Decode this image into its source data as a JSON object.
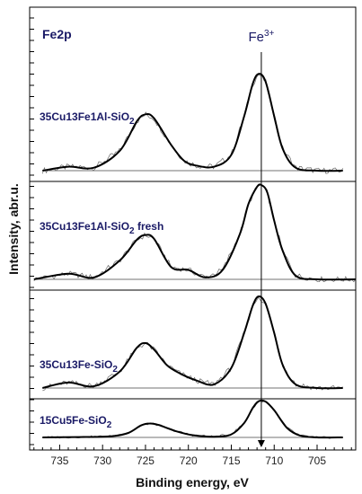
{
  "chart_data": {
    "type": "line",
    "title": "Fe2p",
    "xlabel": "Binding energy, eV",
    "ylabel": "Intensity, abr.u.",
    "x_reversed": true,
    "xlim": [
      738.5,
      700.5
    ],
    "xticks": [
      735,
      730,
      725,
      720,
      715,
      710,
      705
    ],
    "annotation": {
      "text": "Fe",
      "superscript": "3+",
      "x": 711.5
    },
    "grid": false,
    "series": [
      {
        "name": "35Cu13Fe1Al-SiO2",
        "label_main": "35Cu13Fe1Al-SiO",
        "label_sub": "2",
        "label_suffix": "",
        "x": [
          737.0,
          734.0,
          731.0,
          728.0,
          726.0,
          725.0,
          724.0,
          722.0,
          720.5,
          719.0,
          717.0,
          715.0,
          713.5,
          712.5,
          711.8,
          711.0,
          710.0,
          709.0,
          707.5,
          705.0,
          702.0
        ],
        "intensity": [
          0.0,
          0.04,
          0.03,
          0.2,
          0.5,
          0.57,
          0.53,
          0.26,
          0.1,
          0.05,
          0.04,
          0.16,
          0.55,
          0.88,
          0.98,
          0.9,
          0.55,
          0.22,
          0.03,
          0.0,
          0.0
        ]
      },
      {
        "name": "35Cu13Fe1Al-SiO2 fresh",
        "label_main": "35Cu13Fe1Al-SiO",
        "label_sub": "2",
        "label_suffix": " fresh",
        "x": [
          738.0,
          734.0,
          731.0,
          728.0,
          726.0,
          725.0,
          724.0,
          722.0,
          720.0,
          718.0,
          716.0,
          714.0,
          713.0,
          712.0,
          711.5,
          710.8,
          710.0,
          709.0,
          707.5,
          705.0,
          700.5
        ],
        "intensity": [
          0.0,
          0.06,
          0.02,
          0.2,
          0.42,
          0.47,
          0.43,
          0.13,
          0.1,
          0.02,
          0.1,
          0.48,
          0.8,
          0.98,
          1.0,
          0.92,
          0.62,
          0.3,
          0.04,
          0.0,
          0.0
        ]
      },
      {
        "name": "35Cu13Fe-SiO2",
        "label_main": "35Cu13Fe-SiO",
        "label_sub": "2",
        "label_suffix": "",
        "x": [
          737.0,
          734.0,
          731.0,
          728.0,
          726.0,
          725.0,
          724.0,
          722.5,
          721.0,
          719.0,
          717.0,
          715.0,
          713.5,
          712.5,
          711.8,
          711.0,
          710.0,
          709.0,
          707.5,
          705.0,
          702.0
        ],
        "intensity": [
          0.0,
          0.06,
          0.02,
          0.18,
          0.44,
          0.49,
          0.42,
          0.25,
          0.16,
          0.08,
          0.04,
          0.22,
          0.6,
          0.9,
          1.0,
          0.92,
          0.6,
          0.25,
          0.04,
          0.0,
          0.0
        ]
      },
      {
        "name": "15Cu5Fe-SiO2",
        "label_main": "15Cu5Fe-SiO",
        "label_sub": "2",
        "label_suffix": "",
        "x": [
          737.0,
          733.0,
          729.0,
          727.0,
          725.5,
          724.5,
          723.5,
          721.5,
          719.5,
          717.0,
          715.0,
          713.5,
          712.5,
          711.8,
          711.0,
          710.0,
          708.5,
          707.0,
          705.0,
          702.0
        ],
        "intensity": [
          0.0,
          0.01,
          0.03,
          0.12,
          0.32,
          0.37,
          0.33,
          0.17,
          0.06,
          0.02,
          0.08,
          0.38,
          0.78,
          0.96,
          0.95,
          0.72,
          0.25,
          0.05,
          0.0,
          0.0
        ]
      }
    ]
  }
}
